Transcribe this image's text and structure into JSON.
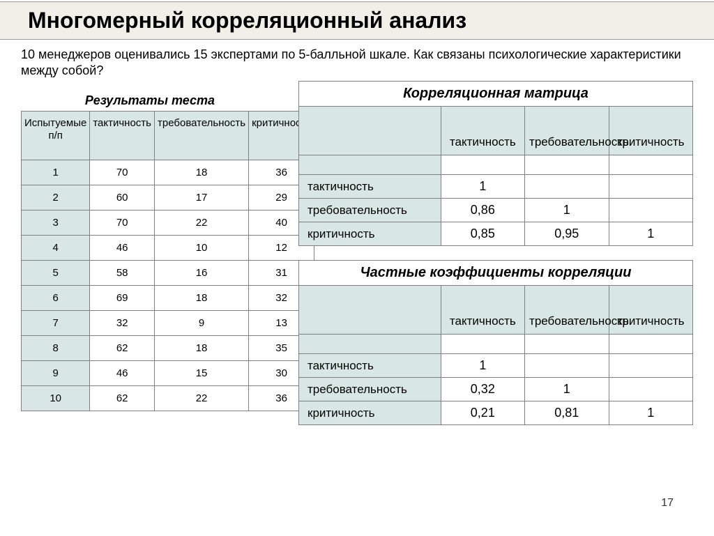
{
  "title": "Многомерный корреляционный анализ",
  "intro": "10 менеджеров оценивались 15 экспертами по 5-балльной шкале. Как связаны психологические характеристики между собой?",
  "test_results": {
    "caption": "Результаты теста",
    "columns": [
      "Испытуемые п/п",
      "тактичность",
      "требовательность",
      "критичность"
    ],
    "rows": [
      [
        "1",
        "70",
        "18",
        "36"
      ],
      [
        "2",
        "60",
        "17",
        "29"
      ],
      [
        "3",
        "70",
        "22",
        "40"
      ],
      [
        "4",
        "46",
        "10",
        "12"
      ],
      [
        "5",
        "58",
        "16",
        "31"
      ],
      [
        "6",
        "69",
        "18",
        "32"
      ],
      [
        "7",
        "32",
        "9",
        "13"
      ],
      [
        "8",
        "62",
        "18",
        "35"
      ],
      [
        "9",
        "46",
        "15",
        "30"
      ],
      [
        "10",
        "62",
        "22",
        "36"
      ]
    ]
  },
  "corr_matrix": {
    "title": "Корреляционная матрица",
    "col_headers": [
      "тактичность",
      "требовательность",
      "критичность"
    ],
    "row_labels": [
      "тактичность",
      "требовательность",
      "критичность"
    ],
    "cells": [
      [
        "1",
        "",
        ""
      ],
      [
        "0,86",
        "1",
        ""
      ],
      [
        "0,85",
        "0,95",
        "1"
      ]
    ]
  },
  "partial_corr": {
    "title": "Частные коэффициенты корреляции",
    "col_headers": [
      "тактичность",
      "требовательность",
      "критичность"
    ],
    "row_labels": [
      "тактичность",
      "требовательность",
      "критичность"
    ],
    "cells": [
      [
        "1",
        "",
        ""
      ],
      [
        "0,32",
        "1",
        ""
      ],
      [
        "0,21",
        "0,81",
        "1"
      ]
    ]
  },
  "slide_number": "17",
  "colors": {
    "header_bg": "#d9e6e6",
    "title_bg": "#f0f0e8",
    "border": "#808080"
  }
}
